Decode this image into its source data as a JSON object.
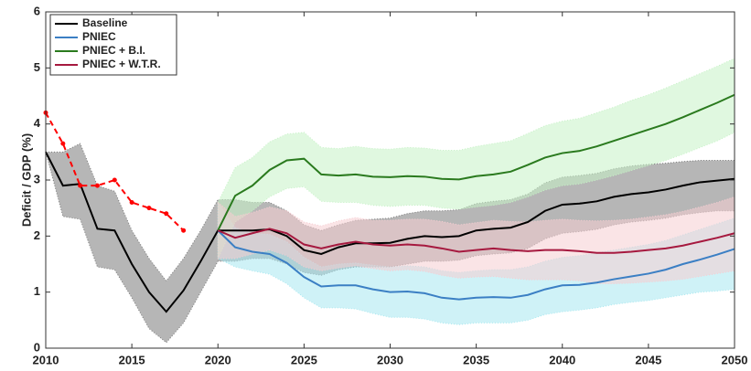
{
  "chart_data": {
    "type": "line",
    "y_label": "Deficit / GDP (%)",
    "x": [
      2010,
      2011,
      2012,
      2013,
      2014,
      2015,
      2016,
      2017,
      2018,
      2019,
      2020,
      2021,
      2022,
      2023,
      2024,
      2025,
      2026,
      2027,
      2028,
      2029,
      2030,
      2031,
      2032,
      2033,
      2034,
      2035,
      2036,
      2037,
      2038,
      2039,
      2040,
      2041,
      2042,
      2043,
      2044,
      2045,
      2046,
      2047,
      2048,
      2049,
      2050
    ],
    "xlim": [
      2010,
      2050
    ],
    "xticks": [
      2010,
      2015,
      2020,
      2025,
      2030,
      2035,
      2040,
      2045,
      2050
    ],
    "ylim": [
      0,
      6
    ],
    "yticks": [
      0,
      1,
      2,
      3,
      4,
      5,
      6
    ],
    "legend": "upper-left",
    "series": [
      {
        "name": "Baseline",
        "color": "#000000",
        "band_color": "#7a7a7a",
        "values": [
          3.5,
          2.9,
          2.93,
          2.13,
          2.1,
          1.5,
          1.0,
          0.65,
          1.03,
          1.55,
          2.1,
          2.1,
          2.1,
          2.12,
          2.0,
          1.75,
          1.68,
          1.8,
          1.87,
          1.87,
          1.88,
          1.95,
          2.0,
          1.98,
          2.0,
          2.1,
          2.13,
          2.15,
          2.25,
          2.45,
          2.56,
          2.58,
          2.62,
          2.7,
          2.75,
          2.78,
          2.83,
          2.9,
          2.96,
          2.99,
          3.02
        ],
        "band": {
          "lower": [
            3.5,
            2.35,
            2.3,
            1.45,
            1.4,
            0.9,
            0.35,
            0.1,
            0.45,
            1.0,
            1.55,
            1.55,
            1.6,
            1.6,
            1.5,
            1.35,
            1.3,
            1.4,
            1.45,
            1.45,
            1.45,
            1.5,
            1.55,
            1.55,
            1.57,
            1.65,
            1.68,
            1.7,
            1.78,
            1.95,
            2.05,
            2.08,
            2.12,
            2.2,
            2.25,
            2.28,
            2.32,
            2.38,
            2.42,
            2.45,
            2.45
          ],
          "upper": [
            3.5,
            3.5,
            3.65,
            2.9,
            2.8,
            2.1,
            1.6,
            1.2,
            1.6,
            2.1,
            2.65,
            2.65,
            2.6,
            2.6,
            2.45,
            2.2,
            2.1,
            2.2,
            2.28,
            2.3,
            2.32,
            2.4,
            2.45,
            2.45,
            2.47,
            2.58,
            2.62,
            2.65,
            2.75,
            2.95,
            3.05,
            3.08,
            3.12,
            3.2,
            3.25,
            3.28,
            3.3,
            3.33,
            3.35,
            3.35,
            3.35
          ]
        }
      },
      {
        "name": "PNIEC",
        "color": "#3b7fc4",
        "band_color": "#a8e8f0",
        "values": [
          null,
          null,
          null,
          null,
          null,
          null,
          null,
          null,
          null,
          null,
          2.1,
          1.8,
          1.72,
          1.68,
          1.52,
          1.27,
          1.1,
          1.12,
          1.12,
          1.05,
          1.0,
          1.01,
          0.98,
          0.9,
          0.87,
          0.9,
          0.91,
          0.9,
          0.95,
          1.05,
          1.12,
          1.13,
          1.17,
          1.23,
          1.28,
          1.33,
          1.4,
          1.5,
          1.58,
          1.67,
          1.77
        ],
        "band": {
          "lower": [
            null,
            null,
            null,
            null,
            null,
            null,
            null,
            null,
            null,
            null,
            1.6,
            1.45,
            1.38,
            1.32,
            1.15,
            0.9,
            0.72,
            0.72,
            0.7,
            0.62,
            0.55,
            0.55,
            0.52,
            0.45,
            0.42,
            0.45,
            0.45,
            0.45,
            0.5,
            0.6,
            0.65,
            0.68,
            0.72,
            0.78,
            0.82,
            0.85,
            0.9,
            0.95,
            1.0,
            1.02,
            1.05
          ],
          "upper": [
            null,
            null,
            null,
            null,
            null,
            null,
            null,
            null,
            null,
            null,
            2.6,
            2.15,
            2.05,
            2.03,
            1.9,
            1.62,
            1.45,
            1.5,
            1.52,
            1.48,
            1.45,
            1.47,
            1.45,
            1.38,
            1.35,
            1.38,
            1.4,
            1.4,
            1.45,
            1.55,
            1.62,
            1.65,
            1.7,
            1.75,
            1.8,
            1.85,
            1.92,
            2.02,
            2.12,
            2.22,
            2.32
          ]
        }
      },
      {
        "name": "PNIEC + B.I.",
        "color": "#2a7a1e",
        "band_color": "#c6f2c6",
        "values": [
          null,
          null,
          null,
          null,
          null,
          null,
          null,
          null,
          null,
          null,
          2.1,
          2.72,
          2.9,
          3.18,
          3.35,
          3.38,
          3.1,
          3.08,
          3.1,
          3.06,
          3.05,
          3.07,
          3.06,
          3.02,
          3.01,
          3.07,
          3.1,
          3.15,
          3.27,
          3.4,
          3.48,
          3.52,
          3.6,
          3.7,
          3.8,
          3.9,
          4.0,
          4.12,
          4.25,
          4.38,
          4.52
        ],
        "band": {
          "lower": [
            null,
            null,
            null,
            null,
            null,
            null,
            null,
            null,
            null,
            null,
            1.6,
            2.25,
            2.45,
            2.7,
            2.85,
            2.88,
            2.62,
            2.6,
            2.6,
            2.55,
            2.53,
            2.55,
            2.55,
            2.5,
            2.48,
            2.52,
            2.55,
            2.6,
            2.7,
            2.82,
            2.9,
            2.93,
            3.0,
            3.08,
            3.17,
            3.26,
            3.35,
            3.46,
            3.58,
            3.7,
            3.85
          ],
          "upper": [
            null,
            null,
            null,
            null,
            null,
            null,
            null,
            null,
            null,
            null,
            2.6,
            3.22,
            3.4,
            3.68,
            3.82,
            3.85,
            3.58,
            3.56,
            3.6,
            3.56,
            3.55,
            3.58,
            3.57,
            3.53,
            3.53,
            3.6,
            3.65,
            3.7,
            3.83,
            3.97,
            4.05,
            4.1,
            4.2,
            4.3,
            4.42,
            4.52,
            4.64,
            4.77,
            4.9,
            5.03,
            5.17
          ]
        }
      },
      {
        "name": "PNIEC + W.T.R.",
        "color": "#a6193f",
        "band_color": "#f6cdd2",
        "values": [
          null,
          null,
          null,
          null,
          null,
          null,
          null,
          null,
          null,
          null,
          2.1,
          1.97,
          2.05,
          2.13,
          2.05,
          1.85,
          1.78,
          1.85,
          1.9,
          1.85,
          1.83,
          1.85,
          1.83,
          1.78,
          1.72,
          1.75,
          1.78,
          1.75,
          1.73,
          1.75,
          1.75,
          1.73,
          1.7,
          1.7,
          1.72,
          1.75,
          1.78,
          1.83,
          1.9,
          1.97,
          2.05
        ],
        "band": {
          "lower": [
            null,
            null,
            null,
            null,
            null,
            null,
            null,
            null,
            null,
            null,
            1.6,
            1.6,
            1.68,
            1.75,
            1.65,
            1.45,
            1.38,
            1.43,
            1.47,
            1.42,
            1.38,
            1.4,
            1.37,
            1.3,
            1.25,
            1.27,
            1.28,
            1.25,
            1.22,
            1.22,
            1.22,
            1.2,
            1.15,
            1.15,
            1.16,
            1.18,
            1.2,
            1.23,
            1.28,
            1.33,
            1.38
          ],
          "upper": [
            null,
            null,
            null,
            null,
            null,
            null,
            null,
            null,
            null,
            null,
            2.6,
            2.35,
            2.42,
            2.52,
            2.45,
            2.25,
            2.18,
            2.27,
            2.33,
            2.28,
            2.28,
            2.3,
            2.3,
            2.26,
            2.2,
            2.24,
            2.28,
            2.26,
            2.25,
            2.28,
            2.3,
            2.28,
            2.27,
            2.28,
            2.3,
            2.34,
            2.38,
            2.44,
            2.52,
            2.6,
            2.7
          ]
        }
      },
      {
        "color": "#ff0000",
        "dashed": true,
        "markers": true,
        "values": [
          4.2,
          3.65,
          2.9,
          2.9,
          3.0,
          2.6,
          2.5,
          2.4,
          2.1,
          null,
          null,
          null,
          null,
          null,
          null,
          null,
          null,
          null,
          null,
          null,
          null,
          null,
          null,
          null,
          null,
          null,
          null,
          null,
          null,
          null,
          null,
          null,
          null,
          null,
          null,
          null,
          null,
          null,
          null,
          null,
          null
        ]
      }
    ]
  }
}
